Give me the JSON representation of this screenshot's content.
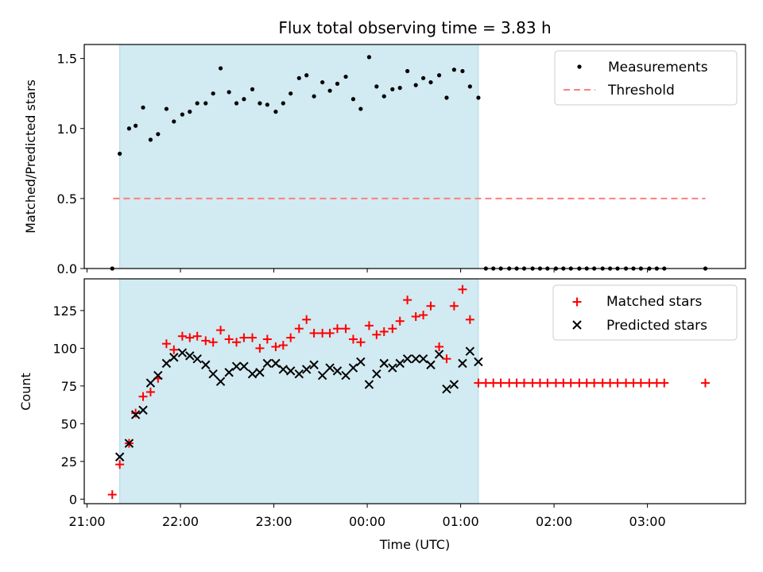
{
  "chart_data": {
    "title": "Flux total observing time = 3.83 h",
    "xlabel": "Time (UTC)",
    "x_ticks": [
      "21:00",
      "22:00",
      "23:00",
      "00:00",
      "01:00",
      "02:00",
      "03:00"
    ],
    "x_ticks_hours": [
      21,
      22,
      23,
      24,
      25,
      26,
      27
    ],
    "x_range_hours": [
      20.97,
      28.05
    ],
    "observing_window_hours": [
      21.35,
      25.19
    ],
    "colors": {
      "window_fill": "#add8e6",
      "measurements": "#000000",
      "threshold": "#ff7f7f",
      "matched": "#ff0000",
      "predicted": "#000000"
    },
    "panels": [
      {
        "type": "scatter",
        "ylabel": "Matched/Predicted stars",
        "ylim": [
          0,
          1.6
        ],
        "y_ticks": [
          "0.0",
          "0.5",
          "1.0",
          "1.5"
        ],
        "y_tick_values": [
          0,
          0.5,
          1.0,
          1.5
        ],
        "legend": [
          "Measurements",
          "Threshold"
        ],
        "legend_position": "top-right",
        "threshold": {
          "name": "Threshold",
          "y": 0.5,
          "x_range_hours": [
            21.28,
            27.62
          ]
        },
        "series": [
          {
            "name": "Measurements",
            "x_hours": [
              21.27,
              21.35,
              21.45,
              21.52,
              21.6,
              21.68,
              21.76,
              21.85,
              21.93,
              22.02,
              22.1,
              22.18,
              22.27,
              22.35,
              22.43,
              22.52,
              22.6,
              22.68,
              22.77,
              22.85,
              22.93,
              23.02,
              23.1,
              23.18,
              23.27,
              23.35,
              23.43,
              23.52,
              23.6,
              23.68,
              23.77,
              23.85,
              23.93,
              24.02,
              24.1,
              24.18,
              24.27,
              24.35,
              24.43,
              24.52,
              24.6,
              24.68,
              24.77,
              24.85,
              24.93,
              25.02,
              25.1,
              25.19,
              25.27,
              25.35,
              25.43,
              25.52,
              25.6,
              25.68,
              25.77,
              25.85,
              25.93,
              26.02,
              26.1,
              26.18,
              26.27,
              26.35,
              26.43,
              26.52,
              26.6,
              26.68,
              26.77,
              26.85,
              26.93,
              27.02,
              27.1,
              27.18,
              27.62
            ],
            "y": [
              0.0,
              0.82,
              1.0,
              1.02,
              1.15,
              0.92,
              0.96,
              1.14,
              1.05,
              1.1,
              1.12,
              1.18,
              1.18,
              1.25,
              1.43,
              1.26,
              1.18,
              1.21,
              1.28,
              1.18,
              1.17,
              1.12,
              1.18,
              1.25,
              1.36,
              1.38,
              1.23,
              1.33,
              1.27,
              1.32,
              1.37,
              1.21,
              1.14,
              1.51,
              1.3,
              1.23,
              1.28,
              1.29,
              1.41,
              1.31,
              1.36,
              1.33,
              1.38,
              1.22,
              1.42,
              1.41,
              1.3,
              1.22,
              0.0,
              0.0,
              0.0,
              0.0,
              0.0,
              0.0,
              0.0,
              0.0,
              0.0,
              0.0,
              0.0,
              0.0,
              0.0,
              0.0,
              0.0,
              0.0,
              0.0,
              0.0,
              0.0,
              0.0,
              0.0,
              0.0,
              0.0,
              0.0,
              0.0
            ]
          }
        ]
      },
      {
        "type": "scatter",
        "ylabel": "Count",
        "ylim": [
          -3,
          146
        ],
        "y_ticks": [
          "0",
          "25",
          "50",
          "75",
          "100",
          "125"
        ],
        "y_tick_values": [
          0,
          25,
          50,
          75,
          100,
          125
        ],
        "legend": [
          "Matched stars",
          "Predicted stars"
        ],
        "legend_position": "top-right",
        "series": [
          {
            "name": "Matched stars",
            "marker": "plus",
            "x_hours": [
              21.27,
              21.35,
              21.45,
              21.52,
              21.6,
              21.68,
              21.76,
              21.85,
              21.93,
              22.02,
              22.1,
              22.18,
              22.27,
              22.35,
              22.43,
              22.52,
              22.6,
              22.68,
              22.77,
              22.85,
              22.93,
              23.02,
              23.1,
              23.18,
              23.27,
              23.35,
              23.43,
              23.52,
              23.6,
              23.68,
              23.77,
              23.85,
              23.93,
              24.02,
              24.1,
              24.18,
              24.27,
              24.35,
              24.43,
              24.52,
              24.6,
              24.68,
              24.77,
              24.85,
              24.93,
              25.02,
              25.1,
              25.19,
              25.27,
              25.35,
              25.43,
              25.52,
              25.6,
              25.68,
              25.77,
              25.85,
              25.93,
              26.02,
              26.1,
              26.18,
              26.27,
              26.35,
              26.43,
              26.52,
              26.6,
              26.68,
              26.77,
              26.85,
              26.93,
              27.02,
              27.1,
              27.18,
              27.62
            ],
            "y": [
              3,
              23,
              37,
              57,
              68,
              71,
              80,
              103,
              99,
              108,
              107,
              108,
              105,
              104,
              112,
              106,
              104,
              107,
              107,
              100,
              106,
              101,
              102,
              107,
              113,
              119,
              110,
              110,
              110,
              113,
              113,
              106,
              104,
              115,
              109,
              111,
              113,
              118,
              132,
              121,
              122,
              128,
              101,
              93,
              128,
              139,
              119,
              77,
              77,
              77,
              77,
              77,
              77,
              77,
              77,
              77,
              77,
              77,
              77,
              77,
              77,
              77,
              77,
              77,
              77,
              77,
              77,
              77,
              77,
              77,
              77,
              77,
              77
            ]
          },
          {
            "name": "Predicted stars",
            "marker": "x",
            "x_hours": [
              21.35,
              21.45,
              21.52,
              21.6,
              21.68,
              21.76,
              21.85,
              21.93,
              22.02,
              22.1,
              22.18,
              22.27,
              22.35,
              22.43,
              22.52,
              22.6,
              22.68,
              22.77,
              22.85,
              22.93,
              23.02,
              23.1,
              23.18,
              23.27,
              23.35,
              23.43,
              23.52,
              23.6,
              23.68,
              23.77,
              23.85,
              23.93,
              24.02,
              24.1,
              24.18,
              24.27,
              24.35,
              24.43,
              24.52,
              24.6,
              24.68,
              24.77,
              24.85,
              24.93,
              25.02,
              25.1,
              25.19
            ],
            "y": [
              28,
              37,
              56,
              59,
              77,
              82,
              90,
              94,
              97,
              95,
              93,
              89,
              83,
              78,
              84,
              88,
              88,
              83,
              84,
              90,
              90,
              86,
              85,
              83,
              86,
              89,
              82,
              87,
              85,
              82,
              87,
              91,
              76,
              83,
              90,
              87,
              90,
              93,
              93,
              93,
              89,
              96,
              73,
              76,
              90,
              98,
              91
            ]
          }
        ]
      }
    ]
  }
}
